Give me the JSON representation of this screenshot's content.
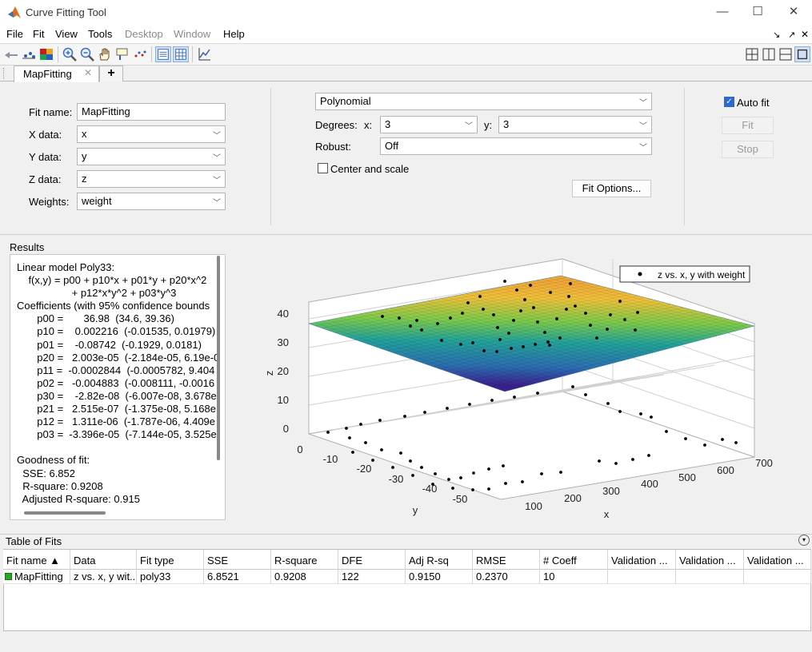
{
  "window": {
    "title": "Curve Fitting Tool",
    "minimize_glyph": "—",
    "maximize_glyph": "☐",
    "close_glyph": "✕"
  },
  "menu": [
    "File",
    "Fit",
    "View",
    "Tools",
    "Desktop",
    "Window",
    "Help"
  ],
  "menu_disabled": [
    "Desktop",
    "Window"
  ],
  "toolbar_right_glyphs": [
    "↘",
    "↗",
    "✕"
  ],
  "tabs": {
    "active": "MapFitting",
    "close_glyph": "✕",
    "add_glyph": "+"
  },
  "fit_settings": {
    "fit_name_label": "Fit name:",
    "fit_name_value": "MapFitting",
    "x_label": "X data:",
    "x_value": "x",
    "y_label": "Y data:",
    "y_value": "y",
    "z_label": "Z data:",
    "z_value": "z",
    "weights_label": "Weights:",
    "weights_value": "weight",
    "fit_type": "Polynomial",
    "degrees_label": "Degrees:",
    "deg_x_label": "x:",
    "deg_x_value": "3",
    "deg_y_label": "y:",
    "deg_y_value": "3",
    "robust_label": "Robust:",
    "robust_value": "Off",
    "center_scale_label": "Center and scale",
    "fit_options_label": "Fit Options...",
    "auto_fit_label": "Auto fit",
    "fit_button": "Fit",
    "stop_button": "Stop"
  },
  "results": {
    "title": "Results",
    "lines": [
      "Linear model Poly33:",
      "    f(x,y) = p00 + p10*x + p01*y + p20*x^2",
      "                   + p12*x*y^2 + p03*y^3",
      "Coefficients (with 95% confidence bounds",
      "       p00 =       36.98  (34.6, 39.36)",
      "       p10 =    0.002216  (-0.01535, 0.01979)",
      "       p01 =    -0.08742  (-0.1929, 0.0181)",
      "       p20 =   2.003e-05  (-2.184e-05, 6.19e-0",
      "       p11 =  -0.0002844  (-0.0005782, 9.404",
      "       p02 =   -0.004883  (-0.008111, -0.0016",
      "       p30 =    -2.82e-08  (-6.007e-08, 3.678e",
      "       p21 =   2.515e-07  (-1.375e-08, 5.168e",
      "       p12 =   1.311e-06  (-1.787e-06, 4.409e",
      "       p03 =  -3.396e-05  (-7.144e-05, 3.525e",
      "",
      "Goodness of fit:",
      "  SSE: 6.852",
      "  R-square: 0.9208",
      "  Adjusted R-square: 0.915"
    ]
  },
  "plot": {
    "legend": "z vs. x, y with weight",
    "zlabel": "z",
    "ylabel": "y",
    "xlabel": "x",
    "z_ticks": [
      "0",
      "10",
      "20",
      "30",
      "40"
    ],
    "y_ticks": [
      "0",
      "-10",
      "-20",
      "-30",
      "-40",
      "-50"
    ],
    "x_ticks": [
      "100",
      "200",
      "300",
      "400",
      "500",
      "600",
      "700"
    ],
    "surface_colormap": [
      "#3b1f8c",
      "#2c6db0",
      "#22a39a",
      "#7ecb4a",
      "#f0c13a",
      "#f0a838"
    ]
  },
  "table": {
    "title": "Table of Fits",
    "collapse_glyph": "▾",
    "columns": [
      "Fit name ▲",
      "Data",
      "Fit type",
      "SSE",
      "R-square",
      "DFE",
      "Adj R-sq",
      "RMSE",
      "# Coeff",
      "Validation ...",
      "Validation ...",
      "Validation ..."
    ],
    "rows": [
      [
        "MapFitting",
        "z vs. x, y wit...",
        "poly33",
        "6.8521",
        "0.9208",
        "122",
        "0.9150",
        "0.2370",
        "10",
        "",
        "",
        ""
      ]
    ],
    "row_color": "#27a827"
  }
}
